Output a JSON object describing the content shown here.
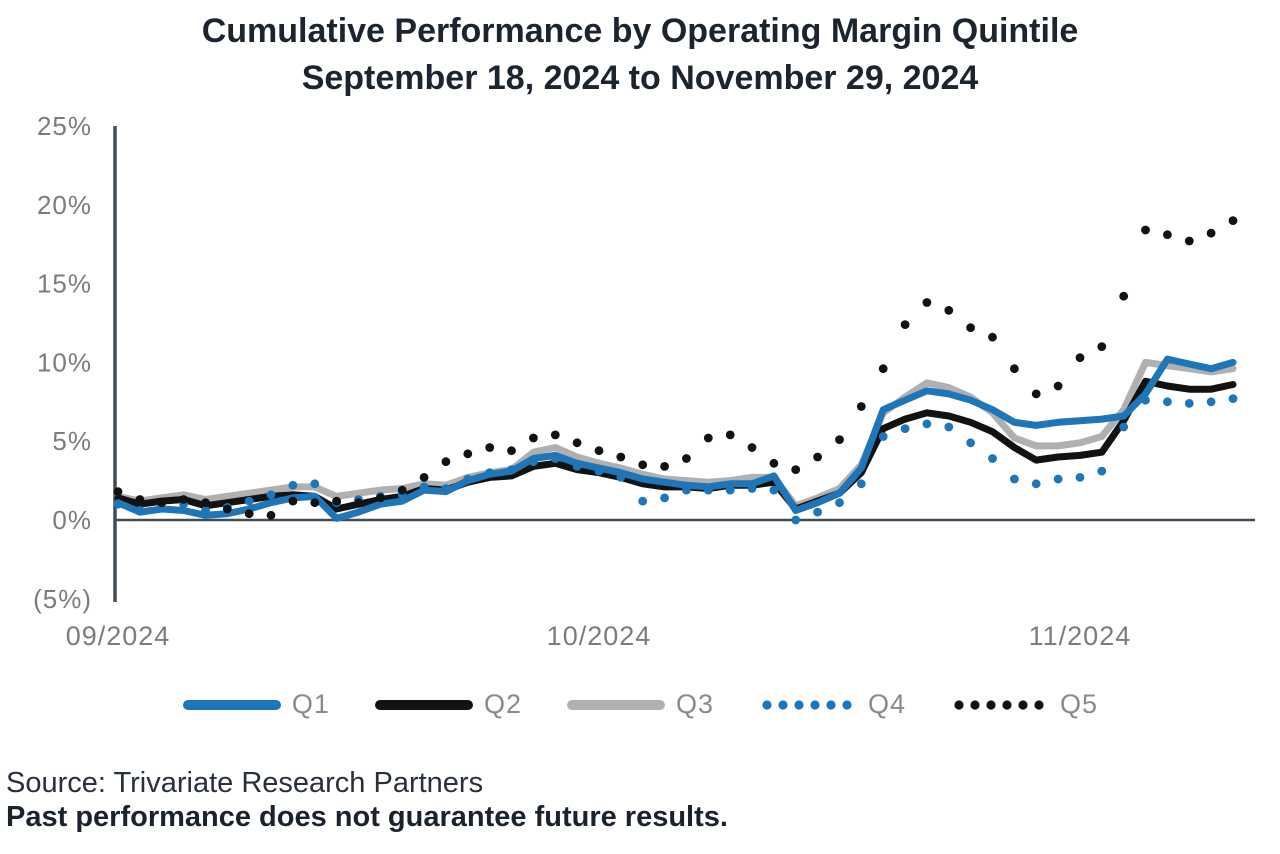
{
  "title": {
    "line1": "Cumulative Performance by Operating Margin Quintile",
    "line2": "September 18, 2024 to November 29, 2024"
  },
  "footer": {
    "source": "Source: Trivariate Research Partners",
    "disclaimer": "Past performance does not guarantee future results."
  },
  "colors": {
    "blue": "#1e76b8",
    "black": "#121212",
    "gray": "#b0b0b0",
    "axis": "#414c57",
    "tick_text": "#7c7c7c",
    "legend_text": "#8a8a8a",
    "title_text": "#1c2430"
  },
  "chart_data": {
    "type": "line",
    "title": "Cumulative Performance by Operating Margin Quintile",
    "subtitle": "September 18, 2024 to November 29, 2024",
    "ylim": [
      -5,
      25
    ],
    "grid": false,
    "legend_position": "bottom",
    "y_ticks": [
      {
        "label": "25%",
        "value": 25
      },
      {
        "label": "20%",
        "value": 20
      },
      {
        "label": "15%",
        "value": 15
      },
      {
        "label": "10%",
        "value": 10
      },
      {
        "label": "5%",
        "value": 5
      },
      {
        "label": "0%",
        "value": 0
      },
      {
        "label": "(5%)",
        "value": -5
      }
    ],
    "x_tick_labels": [
      "09/2024",
      "10/2024",
      "11/2024"
    ],
    "x_tick_indices": [
      0,
      22,
      44
    ],
    "x_dates": [
      "09/18",
      "09/19",
      "09/20",
      "09/23",
      "09/24",
      "09/25",
      "09/26",
      "09/27",
      "09/30",
      "10/01",
      "10/02",
      "10/03",
      "10/04",
      "10/07",
      "10/08",
      "10/09",
      "10/10",
      "10/11",
      "10/14",
      "10/15",
      "10/16",
      "10/17",
      "10/18",
      "10/21",
      "10/22",
      "10/23",
      "10/24",
      "10/25",
      "10/28",
      "10/29",
      "10/30",
      "10/31",
      "11/01",
      "11/04",
      "11/05",
      "11/06",
      "11/07",
      "11/08",
      "11/11",
      "11/12",
      "11/13",
      "11/14",
      "11/15",
      "11/18",
      "11/19",
      "11/20",
      "11/21",
      "11/22",
      "11/25",
      "11/26",
      "11/27",
      "11/29"
    ],
    "series": [
      {
        "name": "Q1",
        "style": "solid",
        "color_key": "blue",
        "values": [
          1.1,
          0.5,
          0.7,
          0.6,
          0.3,
          0.4,
          0.7,
          1.1,
          1.4,
          1.5,
          0.1,
          0.5,
          1.0,
          1.2,
          1.9,
          1.8,
          2.5,
          2.9,
          3.1,
          3.9,
          4.1,
          3.6,
          3.3,
          3.0,
          2.6,
          2.4,
          2.2,
          2.1,
          2.3,
          2.3,
          2.8,
          0.6,
          1.1,
          1.7,
          3.3,
          7.0,
          7.6,
          8.2,
          8.0,
          7.6,
          7.0,
          6.2,
          6.0,
          6.2,
          6.3,
          6.4,
          6.6,
          8.0,
          10.2,
          9.9,
          9.6,
          10.0
        ]
      },
      {
        "name": "Q2",
        "style": "solid",
        "color_key": "black",
        "values": [
          1.4,
          1.0,
          1.2,
          1.3,
          0.9,
          1.1,
          1.3,
          1.5,
          1.6,
          1.5,
          0.7,
          1.0,
          1.3,
          1.5,
          2.0,
          1.9,
          2.4,
          2.7,
          2.8,
          3.4,
          3.6,
          3.2,
          3.0,
          2.7,
          2.3,
          2.1,
          2.1,
          2.0,
          2.2,
          2.2,
          2.4,
          0.7,
          1.2,
          1.7,
          3.0,
          5.8,
          6.4,
          6.8,
          6.6,
          6.2,
          5.6,
          4.6,
          3.8,
          4.0,
          4.1,
          4.3,
          6.3,
          8.8,
          8.5,
          8.3,
          8.3,
          8.6
        ]
      },
      {
        "name": "Q3",
        "style": "solid",
        "color_key": "gray",
        "values": [
          1.5,
          1.2,
          1.4,
          1.6,
          1.3,
          1.5,
          1.7,
          1.9,
          2.1,
          2.1,
          1.5,
          1.7,
          1.9,
          2.0,
          2.3,
          2.2,
          2.7,
          3.0,
          3.2,
          4.3,
          4.6,
          4.0,
          3.6,
          3.3,
          2.9,
          2.6,
          2.5,
          2.4,
          2.5,
          2.7,
          2.7,
          0.9,
          1.4,
          2.0,
          3.5,
          6.8,
          7.8,
          8.7,
          8.4,
          7.8,
          6.8,
          5.2,
          4.7,
          4.7,
          4.9,
          5.3,
          7.0,
          10.0,
          9.8,
          9.6,
          9.4,
          9.6
        ]
      },
      {
        "name": "Q4",
        "style": "dotted",
        "color_key": "blue",
        "values": [
          1.0,
          0.6,
          0.8,
          1.0,
          0.6,
          0.8,
          1.2,
          1.6,
          2.2,
          2.3,
          1.1,
          1.3,
          1.5,
          1.6,
          2.1,
          2.0,
          2.6,
          3.0,
          3.2,
          3.7,
          3.9,
          3.4,
          3.1,
          2.7,
          1.2,
          1.4,
          1.9,
          1.9,
          1.9,
          2.0,
          1.9,
          0.0,
          0.5,
          1.1,
          2.3,
          5.3,
          5.8,
          6.1,
          5.9,
          4.9,
          3.9,
          2.6,
          2.3,
          2.6,
          2.7,
          3.1,
          5.9,
          7.6,
          7.5,
          7.4,
          7.5,
          7.7
        ]
      },
      {
        "name": "Q5",
        "style": "dotted",
        "color_key": "black",
        "values": [
          1.8,
          1.3,
          1.1,
          1.3,
          1.1,
          0.7,
          0.4,
          0.3,
          1.2,
          1.1,
          1.2,
          1.1,
          1.4,
          1.9,
          2.7,
          3.7,
          4.2,
          4.6,
          4.4,
          5.2,
          5.4,
          4.9,
          4.4,
          4.0,
          3.5,
          3.4,
          3.9,
          5.2,
          5.4,
          4.6,
          3.6,
          3.2,
          4.0,
          5.1,
          7.2,
          9.6,
          12.4,
          13.8,
          13.3,
          12.2,
          11.6,
          9.6,
          8.0,
          8.5,
          10.3,
          11.0,
          14.2,
          18.4,
          18.1,
          17.7,
          18.2,
          19.0
        ]
      }
    ]
  }
}
